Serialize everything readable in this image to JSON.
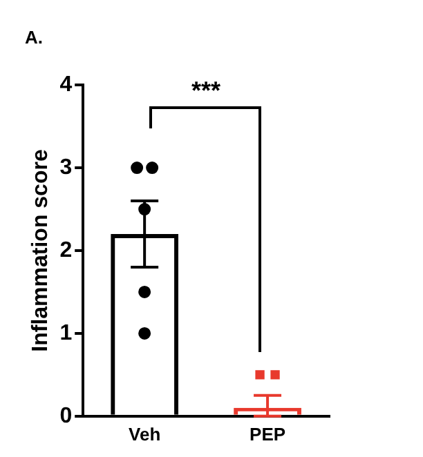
{
  "chart_data": {
    "type": "bar",
    "title": "A.",
    "ylabel": "Inflammation score",
    "categories": [
      "Veh",
      "PEP"
    ],
    "series": [
      {
        "colors": [
          "#000000",
          "#e8392d"
        ],
        "values": [
          2.2,
          0.1
        ],
        "errors": [
          0.4,
          [
            0,
            0.25
          ]
        ]
      },
      {
        "type": "scatter",
        "color": "#000000",
        "marker": "circle",
        "x": [
          "Veh",
          "Veh",
          "Veh",
          "Veh",
          "Veh"
        ],
        "values": [
          3,
          3,
          2.5,
          1.5,
          1
        ]
      },
      {
        "type": "scatter",
        "color": "#e8392d",
        "marker": "square",
        "x": [
          "PEP",
          "PEP"
        ],
        "values": [
          0.5,
          0.5
        ]
      }
    ],
    "ylim": [
      0,
      4
    ],
    "yticks": [
      0,
      1,
      2,
      3,
      4
    ],
    "grid": false,
    "legend": false,
    "annotations": [
      "***"
    ]
  }
}
